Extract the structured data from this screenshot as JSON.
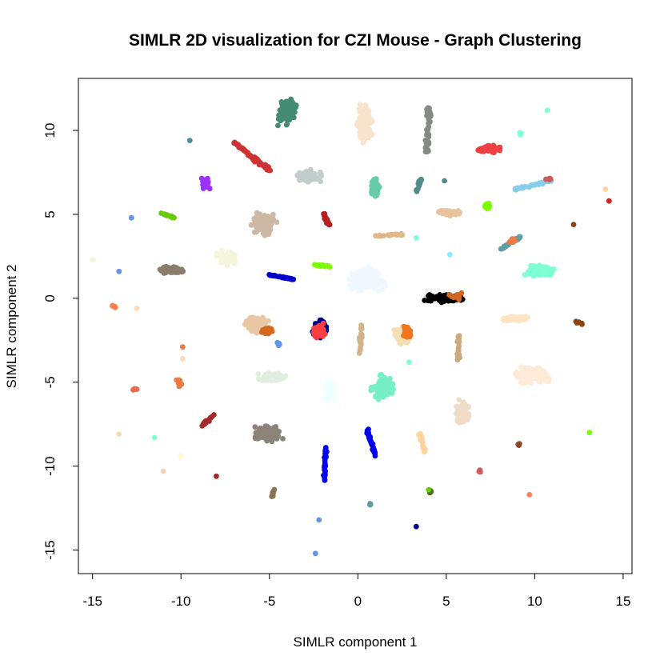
{
  "chart_data": {
    "type": "scatter",
    "title": "SIMLR 2D visualization for CZI Mouse - Graph Clustering",
    "xlabel": "SIMLR component 1",
    "ylabel": "SIMLR component 2",
    "xlim": [
      -15.8,
      15.5
    ],
    "ylim": [
      -16.4,
      13.1
    ],
    "xticks": [
      -15,
      -10,
      -5,
      0,
      5,
      10,
      15
    ],
    "yticks": [
      -15,
      -10,
      -5,
      0,
      5,
      10
    ],
    "xtick_labels": [
      "-15",
      "-10",
      "-5",
      "0",
      "5",
      "10",
      "15"
    ],
    "ytick_labels": [
      "-15",
      "-10",
      "-5",
      "0",
      "5",
      "10"
    ],
    "grid": false,
    "legend": "none",
    "clusters": [
      {
        "color": "#458B74",
        "shape": "blob",
        "center": [
          -4.0,
          11.1
        ],
        "spread": [
          0.6,
          0.9
        ],
        "n": 120
      },
      {
        "color": "#F8E3CC",
        "shape": "blob",
        "center": [
          0.4,
          10.4
        ],
        "spread": [
          0.5,
          1.4
        ],
        "n": 120
      },
      {
        "color": "#838B83",
        "shape": "line",
        "from": [
          4.0,
          11.5
        ],
        "to": [
          3.9,
          8.6
        ],
        "width": 0.25,
        "n": 50
      },
      {
        "color": "#EE4040",
        "shape": "blob",
        "center": [
          7.5,
          8.9
        ],
        "spread": [
          0.8,
          0.3
        ],
        "n": 80
      },
      {
        "color": "#7FFFD4",
        "shape": "blob",
        "center": [
          9.2,
          9.8
        ],
        "spread": [
          0.1,
          0.2
        ],
        "n": 6
      },
      {
        "color": "#7FFFD4",
        "shape": "point",
        "center": [
          10.7,
          11.2
        ]
      },
      {
        "color": "#528B8B",
        "shape": "point",
        "center": [
          -9.5,
          9.4
        ]
      },
      {
        "color": "#CD3333",
        "shape": "line",
        "from": [
          -7.0,
          9.3
        ],
        "to": [
          -5.0,
          7.6
        ],
        "width": 0.2,
        "n": 60
      },
      {
        "color": "#C1CDCD",
        "shape": "blob",
        "center": [
          -2.8,
          7.3
        ],
        "spread": [
          0.9,
          0.4
        ],
        "n": 90
      },
      {
        "color": "#66CDAA",
        "shape": "blob",
        "center": [
          1.0,
          6.5
        ],
        "spread": [
          0.3,
          0.8
        ],
        "n": 60
      },
      {
        "color": "#528B8B",
        "shape": "line",
        "from": [
          3.6,
          7.1
        ],
        "to": [
          3.3,
          6.4
        ],
        "width": 0.2,
        "n": 14
      },
      {
        "color": "#528B8B",
        "shape": "point",
        "center": [
          4.9,
          7.0
        ]
      },
      {
        "color": "#9B30FF",
        "shape": "blob",
        "center": [
          -8.6,
          6.8
        ],
        "spread": [
          0.3,
          0.4
        ],
        "n": 40
      },
      {
        "color": "#87CEEB",
        "shape": "line",
        "from": [
          8.9,
          6.5
        ],
        "to": [
          11.0,
          7.0
        ],
        "width": 0.15,
        "n": 40
      },
      {
        "color": "#CD5C5C",
        "shape": "blob",
        "center": [
          10.8,
          7.1
        ],
        "spread": [
          0.2,
          0.1
        ],
        "n": 8
      },
      {
        "color": "#FFD39B",
        "shape": "point",
        "center": [
          14.0,
          6.5
        ]
      },
      {
        "color": "#CD2626",
        "shape": "point",
        "center": [
          14.2,
          5.8
        ]
      },
      {
        "color": "#6495ED",
        "shape": "point",
        "center": [
          -12.8,
          4.8
        ]
      },
      {
        "color": "#66CD00",
        "shape": "line",
        "from": [
          -11.2,
          5.1
        ],
        "to": [
          -10.4,
          4.8
        ],
        "width": 0.12,
        "n": 15
      },
      {
        "color": "#CDB7A5",
        "shape": "blob",
        "center": [
          -5.3,
          4.4
        ],
        "spread": [
          0.8,
          0.8
        ],
        "n": 120
      },
      {
        "color": "#B22222",
        "shape": "line",
        "from": [
          -2.0,
          5.1
        ],
        "to": [
          -1.6,
          4.3
        ],
        "width": 0.15,
        "n": 20
      },
      {
        "color": "#DEB887",
        "shape": "line",
        "from": [
          0.7,
          3.7
        ],
        "to": [
          2.5,
          3.8
        ],
        "width": 0.12,
        "n": 20
      },
      {
        "color": "#E8C39E",
        "shape": "blob",
        "center": [
          5.2,
          5.1
        ],
        "spread": [
          0.9,
          0.2
        ],
        "n": 40
      },
      {
        "color": "#7CFC00",
        "shape": "blob",
        "center": [
          7.3,
          5.5
        ],
        "spread": [
          0.2,
          0.3
        ],
        "n": 20
      },
      {
        "color": "#8B4513",
        "shape": "point",
        "center": [
          12.2,
          4.4
        ]
      },
      {
        "color": "#5F9EA0",
        "shape": "line",
        "from": [
          8.0,
          2.9
        ],
        "to": [
          9.3,
          3.7
        ],
        "width": 0.15,
        "n": 25
      },
      {
        "color": "#EE7942",
        "shape": "blob",
        "center": [
          8.7,
          3.4
        ],
        "spread": [
          0.3,
          0.2
        ],
        "n": 10
      },
      {
        "color": "#7FFFD4",
        "shape": "point",
        "center": [
          3.3,
          3.6
        ]
      },
      {
        "color": "#87EEFF",
        "shape": "point",
        "center": [
          5.2,
          2.6
        ]
      },
      {
        "color": "#F5F5DC",
        "shape": "point",
        "center": [
          -15.0,
          2.3
        ]
      },
      {
        "color": "#6495ED",
        "shape": "point",
        "center": [
          -13.5,
          1.6
        ]
      },
      {
        "color": "#8B7D6B",
        "shape": "blob",
        "center": [
          -10.5,
          1.7
        ],
        "spread": [
          0.9,
          0.3
        ],
        "n": 80
      },
      {
        "color": "#F5F5DC",
        "shape": "blob",
        "center": [
          -7.4,
          2.4
        ],
        "spread": [
          0.7,
          0.5
        ],
        "n": 80
      },
      {
        "color": "#0000CD",
        "shape": "line",
        "from": [
          -5.0,
          1.4
        ],
        "to": [
          -3.5,
          1.1
        ],
        "width": 0.1,
        "n": 30
      },
      {
        "color": "#7CFC00",
        "shape": "line",
        "from": [
          -2.5,
          2.0
        ],
        "to": [
          -1.6,
          1.9
        ],
        "width": 0.1,
        "n": 15
      },
      {
        "color": "#F0F8FF",
        "shape": "blob",
        "center": [
          0.5,
          1.1
        ],
        "spread": [
          1.4,
          0.8
        ],
        "n": 150
      },
      {
        "color": "#000000",
        "shape": "blob",
        "center": [
          5.0,
          0.0
        ],
        "spread": [
          1.5,
          0.3
        ],
        "n": 90
      },
      {
        "color": "#D2691E",
        "shape": "blob",
        "center": [
          5.6,
          0.1
        ],
        "spread": [
          0.5,
          0.3
        ],
        "n": 15
      },
      {
        "color": "#7FFFD4",
        "shape": "blob",
        "center": [
          10.3,
          1.6
        ],
        "spread": [
          1.0,
          0.4
        ],
        "n": 100
      },
      {
        "color": "#FF7F50",
        "shape": "blob",
        "center": [
          -13.8,
          -0.5
        ],
        "spread": [
          0.2,
          0.1
        ],
        "n": 6
      },
      {
        "color": "#FFDAB9",
        "shape": "point",
        "center": [
          -12.5,
          -0.6
        ]
      },
      {
        "color": "#E9C6A4",
        "shape": "blob",
        "center": [
          -5.7,
          -1.6
        ],
        "spread": [
          0.8,
          0.6
        ],
        "n": 130
      },
      {
        "color": "#D2691E",
        "shape": "blob",
        "center": [
          -5.1,
          -1.9
        ],
        "spread": [
          0.4,
          0.3
        ],
        "n": 30
      },
      {
        "color": "#6495ED",
        "shape": "blob",
        "center": [
          -4.5,
          -2.7
        ],
        "spread": [
          0.1,
          0.2
        ],
        "n": 8
      },
      {
        "color": "#00008B",
        "shape": "blob",
        "center": [
          -2.1,
          -1.8
        ],
        "spread": [
          0.5,
          0.7
        ],
        "n": 90
      },
      {
        "color": "#FF4040",
        "shape": "blob",
        "center": [
          -2.2,
          -1.9
        ],
        "spread": [
          0.4,
          0.5
        ],
        "n": 80
      },
      {
        "color": "#D2B48C",
        "shape": "line",
        "from": [
          0.2,
          -1.6
        ],
        "to": [
          0.1,
          -3.4
        ],
        "width": 0.15,
        "n": 20
      },
      {
        "color": "#F5DEB3",
        "shape": "blob",
        "center": [
          2.5,
          -2.2
        ],
        "spread": [
          0.6,
          0.7
        ],
        "n": 80
      },
      {
        "color": "#EE7621",
        "shape": "blob",
        "center": [
          2.8,
          -2.0
        ],
        "spread": [
          0.3,
          0.5
        ],
        "n": 25
      },
      {
        "color": "#7FFFD4",
        "shape": "point",
        "center": [
          2.9,
          -3.8
        ]
      },
      {
        "color": "#CDAA7D",
        "shape": "line",
        "from": [
          5.7,
          -2.2
        ],
        "to": [
          5.7,
          -3.9
        ],
        "width": 0.15,
        "n": 25
      },
      {
        "color": "#FFE4C4",
        "shape": "blob",
        "center": [
          8.9,
          -1.2
        ],
        "spread": [
          0.9,
          0.2
        ],
        "n": 60
      },
      {
        "color": "#8B4513",
        "shape": "line",
        "from": [
          12.3,
          -1.4
        ],
        "to": [
          12.7,
          -1.5
        ],
        "width": 0.1,
        "n": 6
      },
      {
        "color": "#FDEBD8",
        "shape": "blob",
        "center": [
          9.8,
          -4.6
        ],
        "spread": [
          1.3,
          0.6
        ],
        "n": 140
      },
      {
        "color": "#EE7942",
        "shape": "point",
        "center": [
          -9.9,
          -2.9
        ]
      },
      {
        "color": "#FFDAB9",
        "shape": "point",
        "center": [
          -9.9,
          -3.6
        ]
      },
      {
        "color": "#EE7942",
        "shape": "blob",
        "center": [
          -10.1,
          -5.0
        ],
        "spread": [
          0.2,
          0.4
        ],
        "n": 10
      },
      {
        "color": "#EE6A50",
        "shape": "blob",
        "center": [
          -12.6,
          -5.4
        ],
        "spread": [
          0.2,
          0.1
        ],
        "n": 6
      },
      {
        "color": "#E0EEE0",
        "shape": "blob",
        "center": [
          -4.9,
          -4.7
        ],
        "spread": [
          1.1,
          0.3
        ],
        "n": 70
      },
      {
        "color": "#F0FFFF",
        "shape": "blob",
        "center": [
          -1.6,
          -5.6
        ],
        "spread": [
          0.4,
          0.8
        ],
        "n": 80
      },
      {
        "color": "#76EEC6",
        "shape": "blob",
        "center": [
          1.4,
          -5.3
        ],
        "spread": [
          0.7,
          0.8
        ],
        "n": 130
      },
      {
        "color": "#EEDCC8",
        "shape": "blob",
        "center": [
          5.9,
          -6.8
        ],
        "spread": [
          0.5,
          0.8
        ],
        "n": 100
      },
      {
        "color": "#A52A2A",
        "shape": "line",
        "from": [
          -8.1,
          -6.9
        ],
        "to": [
          -8.8,
          -7.6
        ],
        "width": 0.15,
        "n": 20
      },
      {
        "color": "#8B8378",
        "shape": "blob",
        "center": [
          -5.1,
          -8.0
        ],
        "spread": [
          0.9,
          0.6
        ],
        "n": 140
      },
      {
        "color": "#F5DEB3",
        "shape": "point",
        "center": [
          -13.5,
          -8.1
        ]
      },
      {
        "color": "#7FFFD4",
        "shape": "point",
        "center": [
          -11.5,
          -8.3
        ]
      },
      {
        "color": "#FFFACD",
        "shape": "point",
        "center": [
          -10.0,
          -9.4
        ]
      },
      {
        "color": "#EED5B7",
        "shape": "point",
        "center": [
          -11.0,
          -10.3
        ]
      },
      {
        "color": "#0000EE",
        "shape": "line",
        "from": [
          0.5,
          -7.8
        ],
        "to": [
          1.0,
          -9.4
        ],
        "width": 0.15,
        "n": 35
      },
      {
        "color": "#0000EE",
        "shape": "line",
        "from": [
          -1.8,
          -8.9
        ],
        "to": [
          -1.9,
          -10.9
        ],
        "width": 0.12,
        "n": 30
      },
      {
        "color": "#FFD39B",
        "shape": "line",
        "from": [
          3.5,
          -8.1
        ],
        "to": [
          3.8,
          -9.1
        ],
        "width": 0.15,
        "n": 20
      },
      {
        "color": "#8B4726",
        "shape": "blob",
        "center": [
          9.1,
          -8.7
        ],
        "spread": [
          0.1,
          0.1
        ],
        "n": 6
      },
      {
        "color": "#7CFC00",
        "shape": "point",
        "center": [
          13.1,
          -8.0
        ]
      },
      {
        "color": "#B22222",
        "shape": "point",
        "center": [
          -8.0,
          -10.6
        ]
      },
      {
        "color": "#CD5C5C",
        "shape": "blob",
        "center": [
          6.9,
          -10.3
        ],
        "spread": [
          0.1,
          0.1
        ],
        "n": 5
      },
      {
        "color": "#FF7F50",
        "shape": "point",
        "center": [
          9.7,
          -11.7
        ]
      },
      {
        "color": "#8B7355",
        "shape": "line",
        "from": [
          -4.7,
          -11.4
        ],
        "to": [
          -4.9,
          -11.9
        ],
        "width": 0.1,
        "n": 10
      },
      {
        "color": "#556B2F",
        "shape": "blob",
        "center": [
          4.1,
          -11.5
        ],
        "spread": [
          0.1,
          0.1
        ],
        "n": 8
      },
      {
        "color": "#66CD00",
        "shape": "point",
        "center": [
          4.0,
          -11.4
        ]
      },
      {
        "color": "#5F9EA0",
        "shape": "blob",
        "center": [
          0.7,
          -12.3
        ],
        "spread": [
          0.05,
          0.1
        ],
        "n": 5
      },
      {
        "color": "#6495ED",
        "shape": "point",
        "center": [
          -2.2,
          -13.2
        ]
      },
      {
        "color": "#00008B",
        "shape": "point",
        "center": [
          3.3,
          -13.6
        ]
      },
      {
        "color": "#6495ED",
        "shape": "point",
        "center": [
          -2.4,
          -15.2
        ]
      }
    ]
  }
}
